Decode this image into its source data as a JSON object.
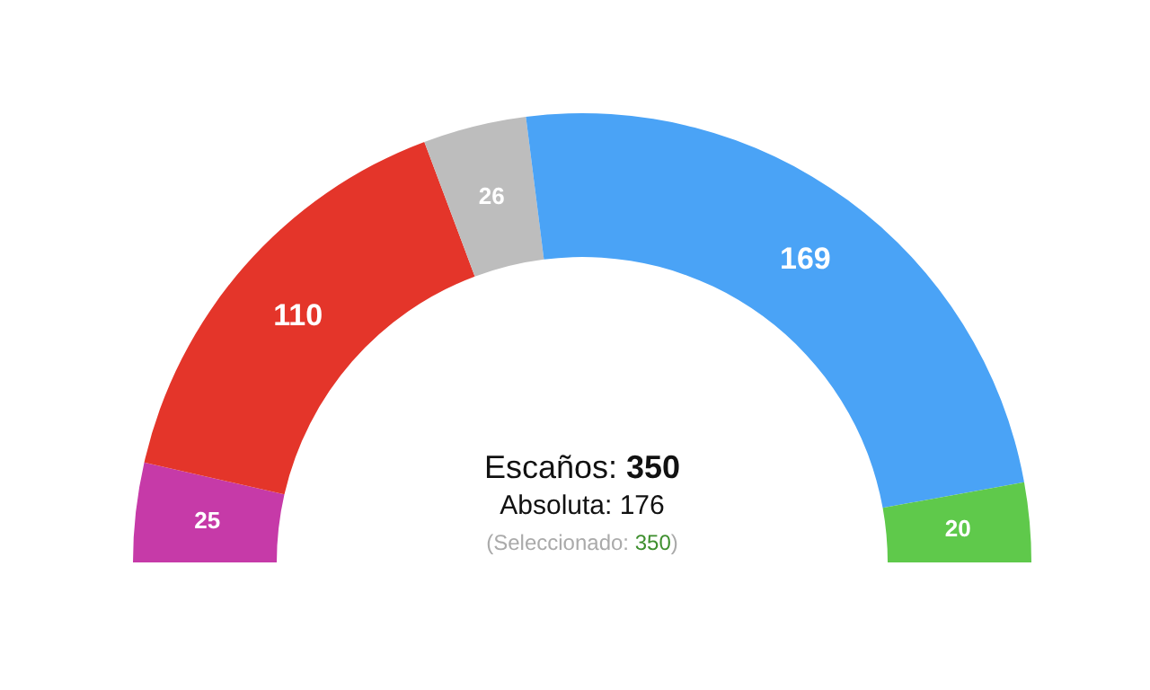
{
  "chart_data": {
    "type": "donut",
    "categories": [
      null,
      null,
      null,
      null,
      null
    ],
    "values": [
      25,
      110,
      26,
      169,
      20
    ],
    "colors": [
      "#c63aa8",
      "#e4352a",
      "#bdbdbd",
      "#4aa3f6",
      "#5fc94b"
    ],
    "data_labels": true,
    "annotations": [
      "Escaños: 350",
      "Absoluta: 176",
      "(Seleccionado: 350)"
    ]
  }
}
